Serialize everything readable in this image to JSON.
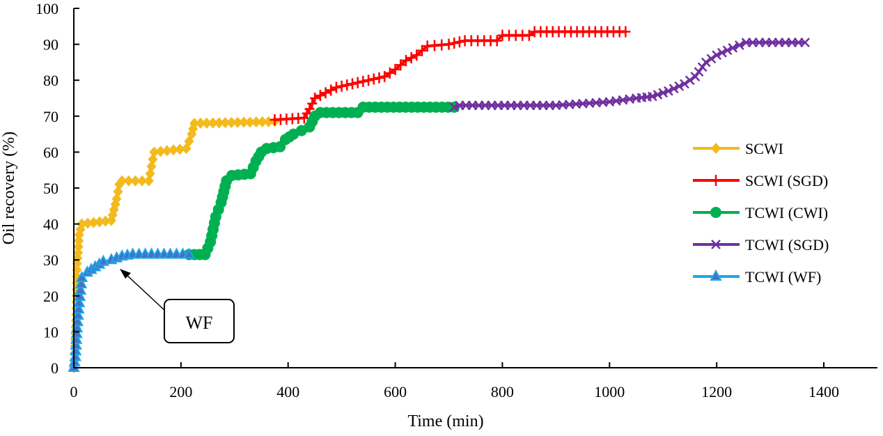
{
  "chart_data": {
    "type": "line",
    "title": "",
    "xlabel": "Time (min)",
    "ylabel": "Oil recovery (%)",
    "xlim": [
      0,
      1400
    ],
    "ylim": [
      0,
      100
    ],
    "xticks": [
      0,
      200,
      400,
      600,
      800,
      1000,
      1200,
      1400
    ],
    "yticks": [
      0,
      10,
      20,
      30,
      40,
      50,
      60,
      70,
      80,
      90,
      100
    ],
    "grid": false,
    "legend_position": "right",
    "annotation": {
      "text": "WF",
      "points_to": [
        90,
        31
      ]
    },
    "series": [
      {
        "name": "SCWI",
        "color": "#F2BA1C",
        "marker": "diamond",
        "points": [
          [
            0,
            0
          ],
          [
            2,
            6
          ],
          [
            4,
            13
          ],
          [
            5,
            20
          ],
          [
            6,
            29
          ],
          [
            8,
            32
          ],
          [
            10,
            37
          ],
          [
            15,
            40
          ],
          [
            70,
            41
          ],
          [
            75,
            44
          ],
          [
            80,
            47
          ],
          [
            85,
            51
          ],
          [
            90,
            52
          ],
          [
            140,
            52
          ],
          [
            145,
            56
          ],
          [
            150,
            60
          ],
          [
            210,
            61
          ],
          [
            220,
            65
          ],
          [
            225,
            68
          ],
          [
            375,
            68.5
          ]
        ]
      },
      {
        "name": "SCWI (SGD)",
        "color": "#FF0000",
        "marker": "plus",
        "points": [
          [
            375,
            69
          ],
          [
            430,
            69.5
          ],
          [
            440,
            72
          ],
          [
            450,
            75
          ],
          [
            470,
            76.5
          ],
          [
            490,
            78
          ],
          [
            520,
            79
          ],
          [
            550,
            80
          ],
          [
            580,
            81
          ],
          [
            600,
            83
          ],
          [
            620,
            85.5
          ],
          [
            640,
            87
          ],
          [
            660,
            89.5
          ],
          [
            700,
            90
          ],
          [
            730,
            91
          ],
          [
            790,
            91
          ],
          [
            800,
            92.5
          ],
          [
            850,
            92.5
          ],
          [
            860,
            93.5
          ],
          [
            1030,
            93.5
          ]
        ]
      },
      {
        "name": "TCWI (CWI)",
        "color": "#00B050",
        "marker": "circle",
        "points": [
          [
            215,
            31.5
          ],
          [
            245,
            31.5
          ],
          [
            255,
            35
          ],
          [
            265,
            42
          ],
          [
            275,
            46
          ],
          [
            285,
            52
          ],
          [
            295,
            53.5
          ],
          [
            330,
            54
          ],
          [
            340,
            57.5
          ],
          [
            350,
            60
          ],
          [
            360,
            61
          ],
          [
            385,
            61.5
          ],
          [
            395,
            63.5
          ],
          [
            410,
            65
          ],
          [
            425,
            66
          ],
          [
            440,
            67
          ],
          [
            450,
            70
          ],
          [
            460,
            71
          ],
          [
            530,
            71
          ],
          [
            540,
            72.5
          ],
          [
            710,
            72.5
          ]
        ]
      },
      {
        "name": "TCWI (SGD)",
        "color": "#7030A0",
        "marker": "x",
        "points": [
          [
            710,
            72.5
          ],
          [
            720,
            73
          ],
          [
            900,
            73
          ],
          [
            950,
            73.5
          ],
          [
            1000,
            74
          ],
          [
            1050,
            75
          ],
          [
            1080,
            75.5
          ],
          [
            1110,
            77
          ],
          [
            1140,
            79
          ],
          [
            1160,
            81
          ],
          [
            1180,
            85
          ],
          [
            1200,
            87
          ],
          [
            1230,
            89
          ],
          [
            1255,
            90.5
          ],
          [
            1365,
            90.5
          ]
        ]
      },
      {
        "name": "TCWI (WF)",
        "color": "#1FA6E8",
        "marker_fill": "#4472C4",
        "marker": "triangle",
        "points": [
          [
            0,
            0
          ],
          [
            3,
            3
          ],
          [
            6,
            11
          ],
          [
            10,
            18
          ],
          [
            15,
            25
          ],
          [
            25,
            26.5
          ],
          [
            40,
            28
          ],
          [
            55,
            29.5
          ],
          [
            70,
            30
          ],
          [
            90,
            31
          ],
          [
            110,
            31.5
          ],
          [
            215,
            31.5
          ]
        ]
      }
    ]
  }
}
